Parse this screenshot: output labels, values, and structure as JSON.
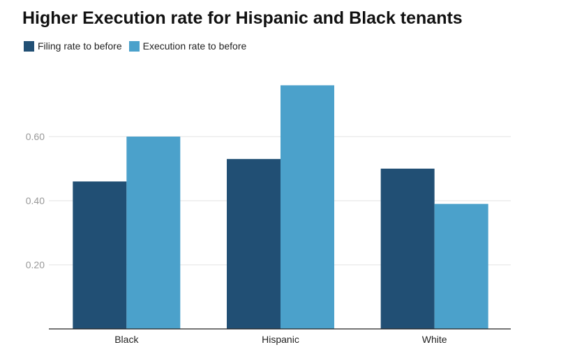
{
  "chart_data": {
    "type": "bar",
    "title": "Higher Execution rate for Hispanic and Black tenants",
    "xlabel": "",
    "ylabel": "",
    "categories": [
      "Black",
      "Hispanic",
      "White"
    ],
    "series": [
      {
        "name": "Filing rate to before",
        "color": "#214f74",
        "values": [
          0.46,
          0.53,
          0.5
        ]
      },
      {
        "name": "Execution rate to before",
        "color": "#4ba1cb",
        "values": [
          0.6,
          0.76,
          0.39
        ]
      }
    ],
    "yticks": [
      "0.20",
      "0.40",
      "0.60"
    ],
    "ylim": [
      0,
      0.8
    ],
    "grid": true,
    "legend_position": "top-left"
  }
}
